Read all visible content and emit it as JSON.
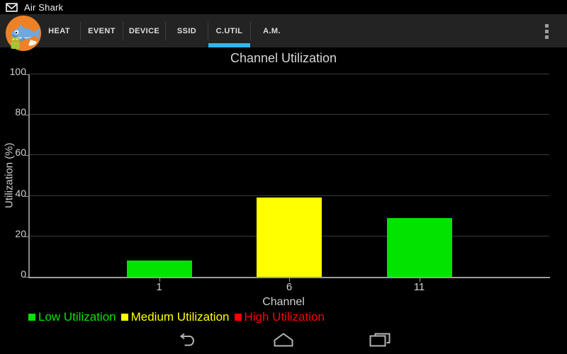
{
  "status_bar": {
    "app_title": "Air Shark",
    "notification_icon": "gmail-envelope-icon"
  },
  "tab_bar": {
    "logo_icon": "air-shark-logo",
    "active_color": "#33b5e5",
    "tabs": [
      {
        "label": "HEAT",
        "active": false
      },
      {
        "label": "EVENT",
        "active": false
      },
      {
        "label": "DEVICE",
        "active": false
      },
      {
        "label": "SSID",
        "active": false
      },
      {
        "label": "C.UTIL",
        "active": true
      },
      {
        "label": "A.M.",
        "active": false
      }
    ],
    "overflow_icon": "overflow-menu-icon"
  },
  "chart_data": {
    "type": "bar",
    "title": "Channel Utilization",
    "xlabel": "Channel",
    "ylabel": "Utilization (%)",
    "categories": [
      "1",
      "6",
      "11"
    ],
    "values": [
      8,
      39,
      29
    ],
    "bar_colors": [
      "#00e400",
      "#ffff00",
      "#00e400"
    ],
    "ylim": [
      0,
      100
    ],
    "yticks": [
      0,
      20,
      40,
      60,
      80,
      100
    ],
    "grid": true,
    "background": "#000000",
    "legend_position": "bottom-left",
    "legend": [
      {
        "label": "Low Utilization",
        "color": "#00e400"
      },
      {
        "label": "Medium Utilization",
        "color": "#ffff00"
      },
      {
        "label": "High Utilization",
        "color": "#ff0000"
      }
    ]
  },
  "nav_bar": {
    "buttons": [
      {
        "name": "back",
        "icon": "back-icon"
      },
      {
        "name": "home",
        "icon": "home-icon"
      },
      {
        "name": "recents",
        "icon": "recents-icon"
      }
    ]
  }
}
